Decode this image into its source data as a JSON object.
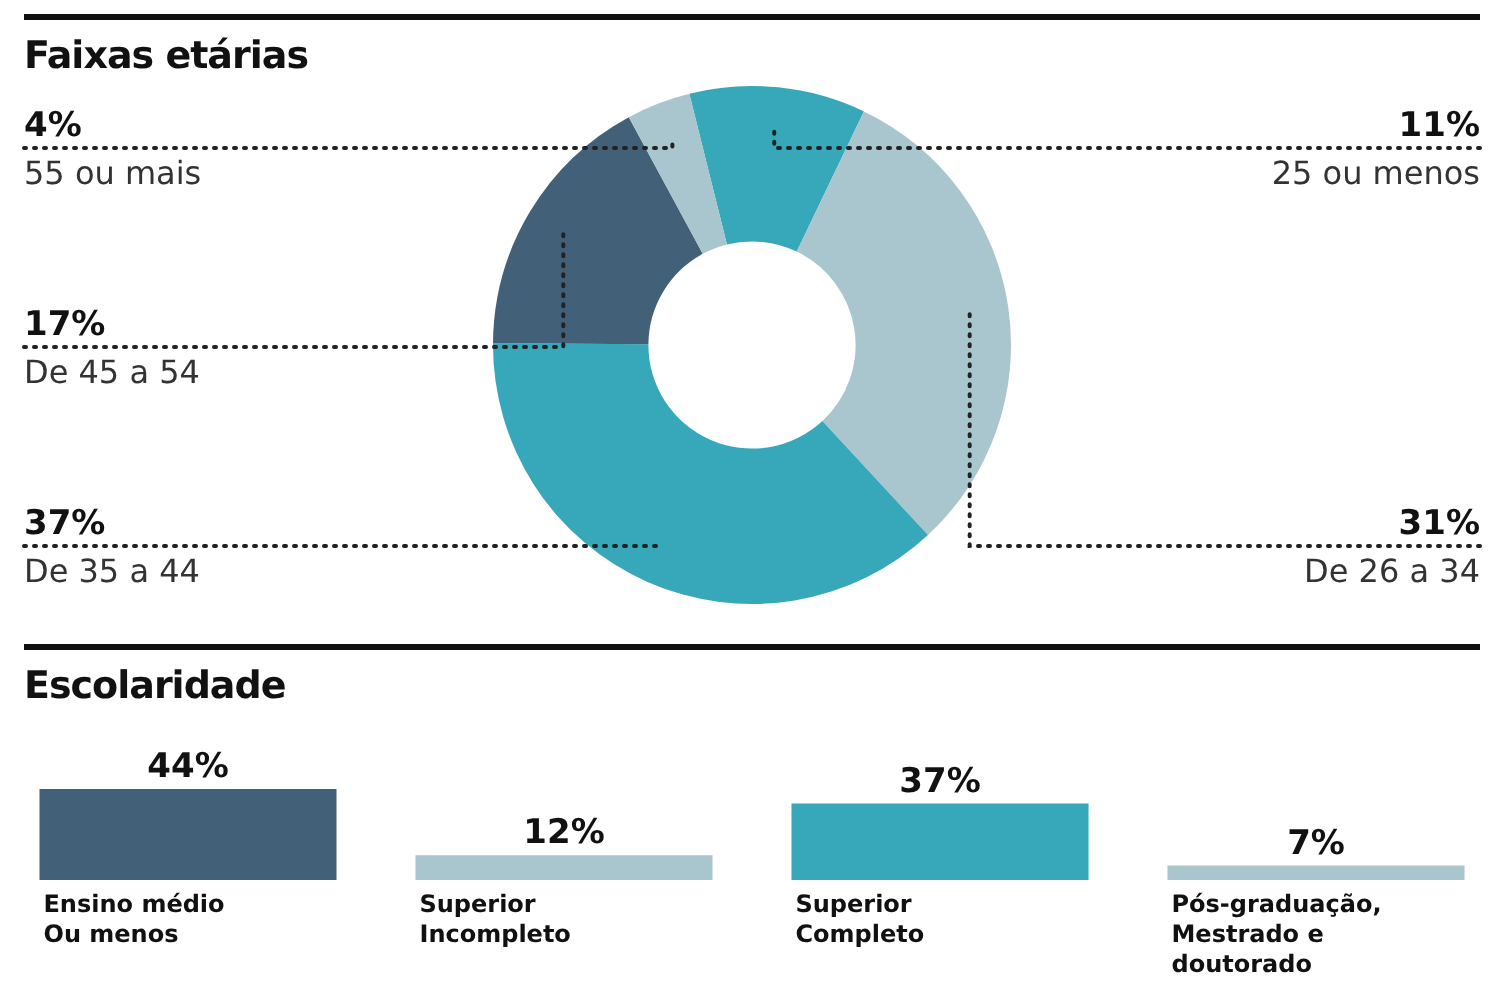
{
  "chart_data": [
    {
      "type": "donut",
      "title": "Faixas etárias",
      "categories": [
        "25 ou menos",
        "De 26 a 34",
        "De 35 a 44",
        "De 45 a 54",
        "55 ou mais"
      ],
      "values": [
        11,
        31,
        37,
        17,
        4
      ],
      "value_labels": [
        "11%",
        "31%",
        "37%",
        "17%",
        "4%"
      ],
      "colors": [
        "#36a8b9",
        "#a9c5cd",
        "#36a8b9",
        "#426078",
        "#a9c5cd"
      ]
    },
    {
      "type": "bar",
      "title": "Escolaridade",
      "categories": [
        "Ensino médio\nOu menos",
        "Superior\nIncompleto",
        "Superior\nCompleto",
        "Pós-graduação,\nMestrado e\ndoutorado"
      ],
      "values": [
        44,
        12,
        37,
        7
      ],
      "value_labels": [
        "44%",
        "12%",
        "37%",
        "7%"
      ],
      "colors": [
        "#426078",
        "#a9c5cd",
        "#36a8b9",
        "#a9c5cd"
      ]
    }
  ]
}
